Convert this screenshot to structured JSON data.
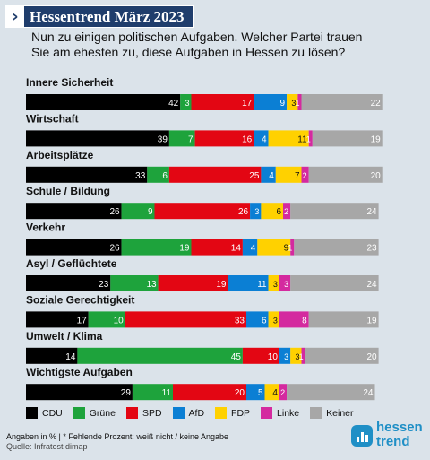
{
  "header": {
    "badge_title": "Hessentrend März 2023",
    "question_line1": "Nun zu einigen politischen Aufgaben. Welcher Partei trauen",
    "question_line2": "Sie am ehesten zu, diese Aufgaben in Hessen zu lösen?"
  },
  "colors": {
    "CDU": "#000000",
    "Grüne": "#1ea33c",
    "SPD": "#e30613",
    "AfD": "#0b7fd4",
    "FDP": "#ffd100",
    "Linke": "#d42a9f",
    "Keiner": "#a7a7a7",
    "brand": "#1f3d6c",
    "logo": "#1f8fc6"
  },
  "chart_data": {
    "type": "bar",
    "orientation": "horizontal-stacked",
    "unit": "%",
    "categories": [
      "Innere Sicherheit",
      "Wirtschaft",
      "Arbeitsplätze",
      "Schule / Bildung",
      "Verkehr",
      "Asyl / Geflüchtete",
      "Soziale Gerechtigkeit",
      "Umwelt / Klima",
      "Wichtigste Aufgaben"
    ],
    "series": [
      {
        "name": "CDU",
        "values": [
          42,
          39,
          33,
          26,
          26,
          23,
          17,
          14,
          29
        ]
      },
      {
        "name": "Grüne",
        "values": [
          3,
          7,
          6,
          9,
          19,
          13,
          10,
          45,
          11
        ]
      },
      {
        "name": "SPD",
        "values": [
          17,
          16,
          25,
          26,
          14,
          19,
          33,
          10,
          20
        ]
      },
      {
        "name": "AfD",
        "values": [
          9,
          4,
          4,
          3,
          4,
          11,
          6,
          3,
          5
        ]
      },
      {
        "name": "FDP",
        "values": [
          3,
          11,
          7,
          6,
          9,
          3,
          3,
          3,
          4
        ]
      },
      {
        "name": "Linke",
        "values": [
          1,
          1,
          2,
          2,
          1,
          3,
          8,
          1,
          2
        ]
      },
      {
        "name": "Keiner",
        "values": [
          22,
          19,
          20,
          24,
          23,
          24,
          19,
          20,
          24
        ]
      }
    ],
    "legend_position": "bottom-left"
  },
  "legend": {
    "items": [
      {
        "label": "CDU",
        "color": "#000000"
      },
      {
        "label": "Grüne",
        "color": "#1ea33c"
      },
      {
        "label": "SPD",
        "color": "#e30613"
      },
      {
        "label": "AfD",
        "color": "#0b7fd4"
      },
      {
        "label": "FDP",
        "color": "#ffd100"
      },
      {
        "label": "Linke",
        "color": "#d42a9f"
      },
      {
        "label": "Keiner",
        "color": "#a7a7a7"
      }
    ]
  },
  "footer": {
    "note": "Angaben in %  |  * Fehlende Prozent: weiß nicht / keine Angabe",
    "source": "Quelle:  Infratest dimap",
    "logo_line1": "hessen",
    "logo_line2": "trend"
  }
}
